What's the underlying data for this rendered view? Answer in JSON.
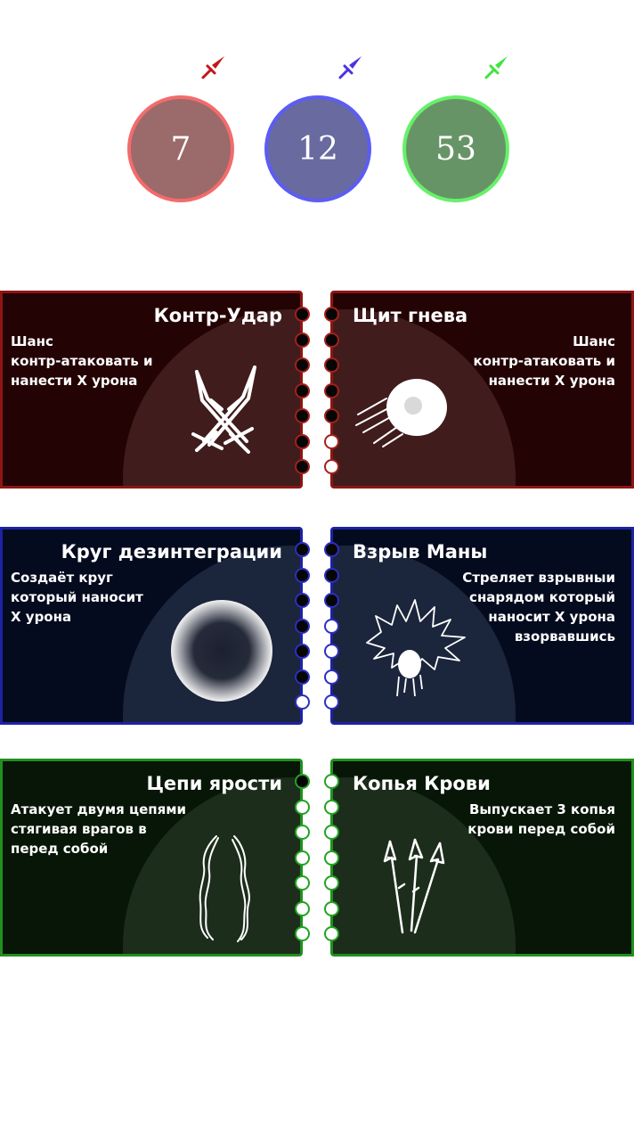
{
  "counters": [
    {
      "name": "red",
      "value": "7",
      "fill": "#9b6a6a",
      "border": "#f36b6b",
      "sword": "#c0161b"
    },
    {
      "name": "blue",
      "value": "12",
      "fill": "#686aa0",
      "border": "#5c5cf5",
      "sword": "#4a33e0"
    },
    {
      "name": "green",
      "value": "53",
      "fill": "#679467",
      "border": "#68f06a",
      "sword": "#3fe43c"
    }
  ],
  "skills": {
    "red_left": {
      "title": "Контр-Удар",
      "desc": [
        "Шанс",
        "контр-атаковать и",
        "нанести X урона"
      ],
      "icon": "crossed-swords-icon",
      "level": 7,
      "max": 7
    },
    "red_right": {
      "title": "Щит гнева",
      "desc": [
        "Шанс",
        "контр-атаковать и",
        "нанести X урона"
      ],
      "icon": "shield-orb-icon",
      "level": 5,
      "max": 7
    },
    "blue_left": {
      "title": "Круг дезинтеграции",
      "desc": [
        "Создаёт круг",
        "который наносит",
        "X урона"
      ],
      "icon": "dark-circle-icon",
      "level": 6,
      "max": 7
    },
    "blue_right": {
      "title": "Взрыв Маны",
      "desc": [
        "Стреляет взрывныи",
        "снарядом который",
        "наносит X урона",
        "взорвавшись"
      ],
      "icon": "mana-explosion-icon",
      "level": 3,
      "max": 7
    },
    "green_left": {
      "title": "Цепи ярости",
      "desc": [
        "Атакует двумя цепями",
        "стягивая врагов в",
        "перед собой"
      ],
      "icon": "chains-icon",
      "level": 1,
      "max": 7
    },
    "green_right": {
      "title": "Копья Крови",
      "desc": [
        "Выпускает 3 копья",
        "крови перед собой"
      ],
      "icon": "blood-spears-icon",
      "level": 0,
      "max": 7
    }
  }
}
